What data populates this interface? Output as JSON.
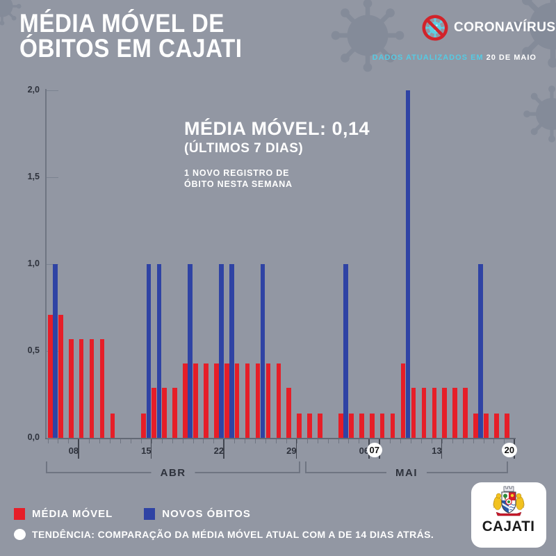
{
  "header": {
    "title_line1": "MÉDIA MÓVEL DE",
    "title_line2": "ÓBITOS EM CAJATI",
    "logo_label": "CORONAVÍRUS",
    "updated_prefix": "DADOS ATUALIZADOS EM",
    "updated_date": "20 DE MAIO"
  },
  "annotation": {
    "line1": "MÉDIA MÓVEL: 0,14",
    "line2": "(ÚLTIMOS 7 DIAS)",
    "line3": "1 NOVO REGISTRO DE",
    "line4": "ÓBITO NESTA SEMANA"
  },
  "chart_data": {
    "type": "bar",
    "title": "MÉDIA MÓVEL DE ÓBITOS EM CAJATI",
    "xlabel": "",
    "ylabel": "",
    "y_max": 2,
    "y_ticks": [
      "2,0",
      "1,5",
      "1,0",
      "0,5",
      "0,0"
    ],
    "grid": false,
    "legend_position": "bottom-left",
    "series_meta": [
      {
        "name": "MÉDIA MÓVEL",
        "key": "avg",
        "color": "#e61e28"
      },
      {
        "name": "NOVOS ÓBITOS",
        "key": "new",
        "color": "#2f43a4"
      }
    ],
    "days": [
      {
        "date": "06/ABR",
        "avg": 0.71,
        "new": 1
      },
      {
        "date": "07/ABR",
        "avg": 0.71,
        "new": 0
      },
      {
        "date": "08/ABR",
        "avg": 0.57,
        "new": 0
      },
      {
        "date": "09/ABR",
        "avg": 0.57,
        "new": 0
      },
      {
        "date": "10/ABR",
        "avg": 0.57,
        "new": 0
      },
      {
        "date": "11/ABR",
        "avg": 0.57,
        "new": 0
      },
      {
        "date": "12/ABR",
        "avg": 0.14,
        "new": 0
      },
      {
        "date": "13/ABR",
        "avg": 0,
        "new": 0
      },
      {
        "date": "14/ABR",
        "avg": 0,
        "new": 0
      },
      {
        "date": "15/ABR",
        "avg": 0.14,
        "new": 1
      },
      {
        "date": "16/ABR",
        "avg": 0.29,
        "new": 1
      },
      {
        "date": "17/ABR",
        "avg": 0.29,
        "new": 0
      },
      {
        "date": "18/ABR",
        "avg": 0.29,
        "new": 0
      },
      {
        "date": "19/ABR",
        "avg": 0.43,
        "new": 1
      },
      {
        "date": "20/ABR",
        "avg": 0.43,
        "new": 0
      },
      {
        "date": "21/ABR",
        "avg": 0.43,
        "new": 0
      },
      {
        "date": "22/ABR",
        "avg": 0.43,
        "new": 1
      },
      {
        "date": "23/ABR",
        "avg": 0.43,
        "new": 1
      },
      {
        "date": "24/ABR",
        "avg": 0.43,
        "new": 0
      },
      {
        "date": "25/ABR",
        "avg": 0.43,
        "new": 0
      },
      {
        "date": "26/ABR",
        "avg": 0.43,
        "new": 1
      },
      {
        "date": "27/ABR",
        "avg": 0.43,
        "new": 0
      },
      {
        "date": "28/ABR",
        "avg": 0.43,
        "new": 0
      },
      {
        "date": "29/ABR",
        "avg": 0.29,
        "new": 0
      },
      {
        "date": "30/ABR",
        "avg": 0.14,
        "new": 0
      },
      {
        "date": "01/MAI",
        "avg": 0.14,
        "new": 0
      },
      {
        "date": "02/MAI",
        "avg": 0.14,
        "new": 0
      },
      {
        "date": "03/MAI",
        "avg": 0,
        "new": 0
      },
      {
        "date": "04/MAI",
        "avg": 0.14,
        "new": 1
      },
      {
        "date": "05/MAI",
        "avg": 0.14,
        "new": 0
      },
      {
        "date": "06/MAI",
        "avg": 0.14,
        "new": 0
      },
      {
        "date": "07/MAI",
        "avg": 0.14,
        "new": 0
      },
      {
        "date": "08/MAI",
        "avg": 0.14,
        "new": 0
      },
      {
        "date": "09/MAI",
        "avg": 0.14,
        "new": 0
      },
      {
        "date": "10/MAI",
        "avg": 0.43,
        "new": 2
      },
      {
        "date": "11/MAI",
        "avg": 0.29,
        "new": 0
      },
      {
        "date": "12/MAI",
        "avg": 0.29,
        "new": 0
      },
      {
        "date": "13/MAI",
        "avg": 0.29,
        "new": 0
      },
      {
        "date": "14/MAI",
        "avg": 0.29,
        "new": 0
      },
      {
        "date": "15/MAI",
        "avg": 0.29,
        "new": 0
      },
      {
        "date": "16/MAI",
        "avg": 0.29,
        "new": 0
      },
      {
        "date": "17/MAI",
        "avg": 0.14,
        "new": 1
      },
      {
        "date": "18/MAI",
        "avg": 0.14,
        "new": 0
      },
      {
        "date": "19/MAI",
        "avg": 0.14,
        "new": 0
      },
      {
        "date": "20/MAI",
        "avg": 0.14,
        "new": 0
      }
    ],
    "x_week_labels": [
      {
        "label": "08",
        "index": 2,
        "circled": false
      },
      {
        "label": "15",
        "index": 9,
        "circled": false
      },
      {
        "label": "22",
        "index": 16,
        "circled": false
      },
      {
        "label": "29",
        "index": 23,
        "circled": false
      },
      {
        "label": "06",
        "index": 30,
        "circled": false
      },
      {
        "label": "07",
        "index": 31,
        "circled": true
      },
      {
        "label": "13",
        "index": 37,
        "circled": false
      },
      {
        "label": "20",
        "index": 44,
        "circled": true
      }
    ],
    "month_groups": [
      {
        "label": "ABR",
        "start": 0,
        "end": 24
      },
      {
        "label": "MAI",
        "start": 25,
        "end": 44
      }
    ]
  },
  "legend": {
    "items": [
      {
        "label": "MÉDIA MÓVEL",
        "color": "#e61e28"
      },
      {
        "label": "NOVOS ÓBITOS",
        "color": "#2f43a4"
      }
    ]
  },
  "footer": {
    "tendencia": "TENDÊNCIA: COMPARAÇÃO DA MÉDIA MÓVEL ATUAL COM A DE 14 DIAS ATRÁS."
  },
  "logo_card": {
    "city": "CAJATI"
  },
  "colors": {
    "bg": "#9297a3",
    "silhouette": "#848b99",
    "series_red": "#e61e28",
    "series_blue": "#2f43a4",
    "cyan": "#55cbe4",
    "ink": "#2e323c",
    "axis": "#6f7582",
    "ring_red": "#d2232a",
    "virus_cyan": "#5ecfe3"
  }
}
